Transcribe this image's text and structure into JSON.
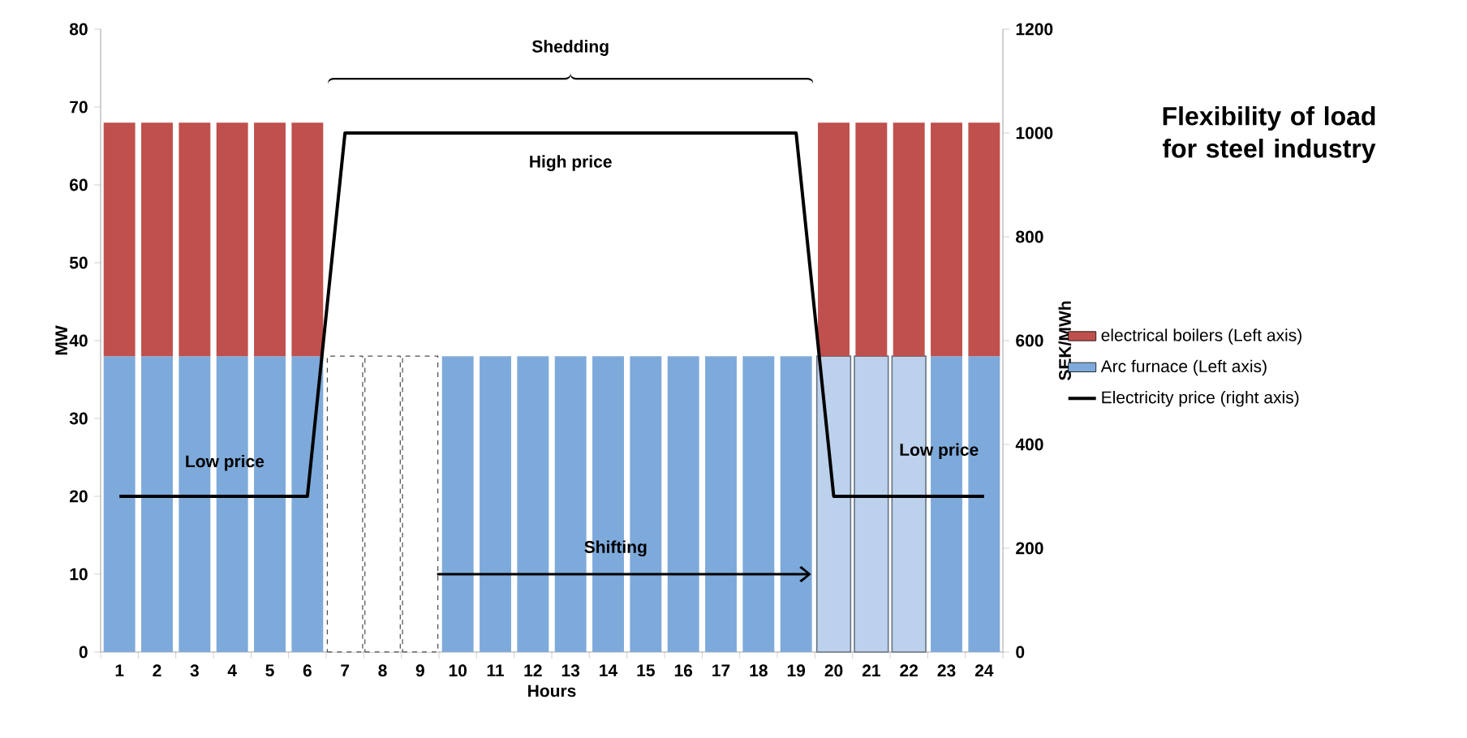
{
  "chart_data": {
    "type": "bar",
    "stacked": true,
    "title": "Flexibility of load for steel industry",
    "xlabel": "Hours",
    "ylabel": "MW",
    "y2label": "SEK/MWh",
    "categories": [
      "1",
      "2",
      "3",
      "4",
      "5",
      "6",
      "7",
      "8",
      "9",
      "10",
      "11",
      "12",
      "13",
      "14",
      "15",
      "16",
      "17",
      "18",
      "19",
      "20",
      "21",
      "22",
      "23",
      "24"
    ],
    "series": [
      {
        "name": "Arc furnace (Left axis)",
        "color": "#7eaadb",
        "values": [
          38,
          38,
          38,
          38,
          38,
          38,
          null,
          null,
          null,
          38,
          38,
          38,
          38,
          38,
          38,
          38,
          38,
          38,
          38,
          null,
          null,
          null,
          38,
          38
        ]
      },
      {
        "color": "#ffffff",
        "line_style": "dashed",
        "values": [
          null,
          null,
          null,
          null,
          null,
          null,
          38,
          38,
          38,
          null,
          null,
          null,
          null,
          null,
          null,
          null,
          null,
          null,
          null,
          null,
          null,
          null,
          null,
          null
        ]
      },
      {
        "color": "#bcd1ec",
        "line_style": "solid",
        "values": [
          null,
          null,
          null,
          null,
          null,
          null,
          null,
          null,
          null,
          null,
          null,
          null,
          null,
          null,
          null,
          null,
          null,
          null,
          null,
          38,
          38,
          38,
          null,
          null
        ]
      },
      {
        "name": "electrical boilers (Left axis)",
        "color": "#c0504d",
        "values": [
          30,
          30,
          30,
          30,
          30,
          30,
          null,
          null,
          null,
          null,
          null,
          null,
          null,
          null,
          null,
          null,
          null,
          null,
          null,
          30,
          30,
          30,
          30,
          30
        ]
      },
      {
        "type": "line",
        "axis": "y2",
        "name": "Electricity price (right axis)",
        "color": "#000000",
        "values": [
          300,
          300,
          300,
          300,
          300,
          300,
          1000,
          1000,
          1000,
          1000,
          1000,
          1000,
          1000,
          1000,
          1000,
          1000,
          1000,
          1000,
          1000,
          300,
          300,
          300,
          300,
          300
        ]
      }
    ],
    "ylim": [
      0,
      80
    ],
    "yticks": [
      0,
      10,
      20,
      30,
      40,
      50,
      60,
      70,
      80
    ],
    "y2lim": [
      0,
      1200
    ],
    "y2ticks": [
      0,
      200,
      400,
      600,
      800,
      1000,
      1200
    ],
    "legend": "right",
    "annotations": [
      "Shedding",
      "High price",
      "Low price",
      "Low price",
      "Shifting"
    ]
  }
}
